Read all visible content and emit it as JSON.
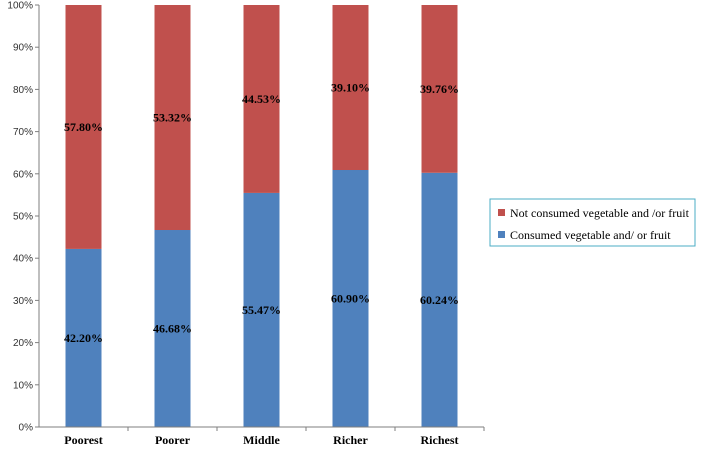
{
  "chart_data": {
    "type": "bar",
    "stacked": true,
    "categories": [
      "Poorest",
      "Poorer",
      "Middle",
      "Richer",
      "Richest"
    ],
    "series": [
      {
        "name": "Consumed vegetable and/ or fruit",
        "values": [
          42.2,
          46.68,
          55.47,
          60.9,
          60.24
        ],
        "labels": [
          "42.20%",
          "46.68%",
          "55.47%",
          "60.90%",
          "60.24%"
        ],
        "color": "#4F81BD"
      },
      {
        "name": "Not consumed  vegetable and /or fruit",
        "values": [
          57.8,
          53.32,
          44.53,
          39.1,
          39.76
        ],
        "labels": [
          "57.80%",
          "53.32%",
          "44.53%",
          "39.10%",
          "39.76%"
        ],
        "color": "#C0504D"
      }
    ],
    "y_ticks": [
      "0%",
      "10%",
      "20%",
      "30%",
      "40%",
      "50%",
      "60%",
      "70%",
      "80%",
      "90%",
      "100%"
    ],
    "ylim": [
      0,
      100
    ],
    "grid": false,
    "legend": {
      "position": "right",
      "border_color": "#4BACC6",
      "entries": [
        "Not consumed  vegetable and /or fruit",
        "Consumed vegetable and/ or fruit"
      ]
    }
  }
}
